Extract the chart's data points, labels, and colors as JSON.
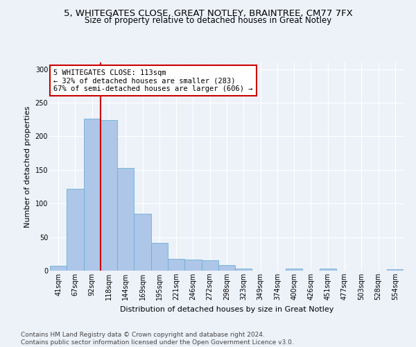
{
  "title_line1": "5, WHITEGATES CLOSE, GREAT NOTLEY, BRAINTREE, CM77 7FX",
  "title_line2": "Size of property relative to detached houses in Great Notley",
  "xlabel": "Distribution of detached houses by size in Great Notley",
  "ylabel": "Number of detached properties",
  "bin_labels": [
    "41sqm",
    "67sqm",
    "92sqm",
    "118sqm",
    "144sqm",
    "169sqm",
    "195sqm",
    "221sqm",
    "246sqm",
    "272sqm",
    "298sqm",
    "323sqm",
    "349sqm",
    "374sqm",
    "400sqm",
    "426sqm",
    "451sqm",
    "477sqm",
    "503sqm",
    "528sqm",
    "554sqm"
  ],
  "bar_values": [
    7,
    122,
    226,
    224,
    153,
    85,
    41,
    18,
    17,
    16,
    8,
    3,
    0,
    0,
    3,
    0,
    3,
    0,
    0,
    0,
    2
  ],
  "bar_color": "#aec6e8",
  "bar_edge_color": "#6aafd6",
  "vline_x_index": 2,
  "vline_color": "#cc0000",
  "annotation_text": "5 WHITEGATES CLOSE: 113sqm\n← 32% of detached houses are smaller (283)\n67% of semi-detached houses are larger (606) →",
  "annotation_box_color": "#ffffff",
  "annotation_box_edge": "#cc0000",
  "ylim": [
    0,
    310
  ],
  "yticks": [
    0,
    50,
    100,
    150,
    200,
    250,
    300
  ],
  "footer_text": "Contains HM Land Registry data © Crown copyright and database right 2024.\nContains public sector information licensed under the Open Government Licence v3.0.",
  "bg_color": "#edf2f9",
  "grid_color": "#ffffff",
  "title_fontsize": 9.5,
  "subtitle_fontsize": 8.5,
  "axis_label_fontsize": 8,
  "tick_fontsize": 7,
  "annotation_fontsize": 7.5,
  "footer_fontsize": 6.5
}
